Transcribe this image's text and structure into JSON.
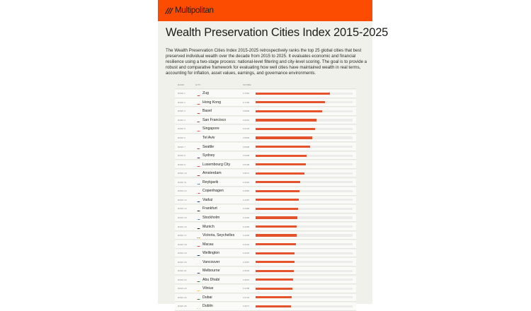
{
  "brand": {
    "logo_mark": "///",
    "name": "Multipolitan",
    "bar_color": "#fc4c02"
  },
  "title": "Wealth Preservation Cities Index 2015-2025",
  "description": "The Wealth Preservation Cities Index 2015-2025 retrospectively ranks the top 25 global cities that best preserved individual wealth over the decade from 2015 to 2025. It evaluates economic and financial resilience using a two-stage process: national-level filtering and city-level scoring. The goal is to provide a robust and comparative framework for evaluating how well cities have maintained wealth in real terms, accounting for inflation, asset values, earnings, and governance environments.",
  "table": {
    "headers": {
      "rank": "RANK",
      "city": "CITY",
      "score": "SCORE"
    },
    "bar_color": "#e5532d",
    "score_max": 1,
    "rows": [
      {
        "rank": "RANK 1",
        "city": "Zug",
        "flag": "switzerland",
        "score": 0.7681
      },
      {
        "rank": "RANK 2",
        "city": "Hong Kong",
        "flag": "hong-kong",
        "score": 0.7155
      },
      {
        "rank": "RANK 3",
        "city": "Basel",
        "flag": "switzerland",
        "score": 0.6839
      },
      {
        "rank": "RANK 4",
        "city": "San Francisco",
        "flag": "united-states",
        "score": 0.6291
      },
      {
        "rank": "RANK 5",
        "city": "Singapore",
        "flag": "singapore",
        "score": 0.6103
      },
      {
        "rank": "RANK 6",
        "city": "Tel Aviv",
        "flag": "israel",
        "score": 0.5845
      },
      {
        "rank": "RANK 7",
        "city": "Seattle",
        "flag": "united-states",
        "score": 0.5608
      },
      {
        "rank": "RANK 8",
        "city": "Sydney",
        "flag": "australia",
        "score": 0.5238
      },
      {
        "rank": "RANK 9",
        "city": "Luxembourg City",
        "flag": "luxembourg",
        "score": 0.5198
      },
      {
        "rank": "RANK 10",
        "city": "Amsterdam",
        "flag": "netherlands",
        "score": 0.5071
      },
      {
        "rank": "RANK 11",
        "city": "Reykjavik",
        "flag": "iceland",
        "score": 0.4623
      },
      {
        "rank": "RANK 12",
        "city": "Copenhagen",
        "flag": "denmark",
        "score": 0.456
      },
      {
        "rank": "RANK 13",
        "city": "Vaduz",
        "flag": "liechtenstein",
        "score": 0.4487
      },
      {
        "rank": "RANK 14",
        "city": "Frankfurt",
        "flag": "germany",
        "score": 0.4366
      },
      {
        "rank": "RANK 15",
        "city": "Stockholm",
        "flag": "sweden",
        "score": 0.4326
      },
      {
        "rank": "RANK 16",
        "city": "Munich",
        "flag": "germany",
        "score": 0.4255
      },
      {
        "rank": "RANK 17",
        "city": "Victoria, Seychelles",
        "flag": "seychelles",
        "score": 0.4206
      },
      {
        "rank": "RANK 18",
        "city": "Macau",
        "flag": "macau",
        "score": 0.4132
      },
      {
        "rank": "RANK 19",
        "city": "Wellington",
        "flag": "new-zealand",
        "score": 0.4023
      },
      {
        "rank": "RANK 20",
        "city": "Vancouver",
        "flag": "canada",
        "score": 0.3987
      },
      {
        "rank": "RANK 21",
        "city": "Melbourne",
        "flag": "australia",
        "score": 0.3933
      },
      {
        "rank": "RANK 22",
        "city": "Abu Dhabi",
        "flag": "uae",
        "score": 0.387
      },
      {
        "rank": "RANK 23",
        "city": "Vilnius",
        "flag": "lithuania",
        "score": 0.3788
      },
      {
        "rank": "RANK 24",
        "city": "Dubai",
        "flag": "uae",
        "score": 0.3732
      },
      {
        "rank": "RANK 25",
        "city": "Dublin",
        "flag": "ireland",
        "score": 0.3677
      }
    ]
  }
}
